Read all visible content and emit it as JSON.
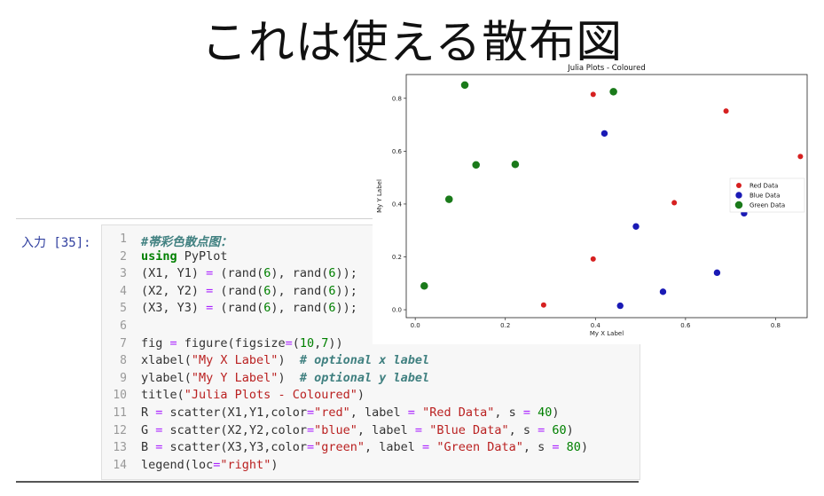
{
  "slide": {
    "title": "これは使える散布図"
  },
  "cell": {
    "prompt": "入力 [35]:",
    "lines": [
      {
        "n": "1",
        "parts": [
          [
            "cm",
            "#帯彩色散点图："
          ]
        ]
      },
      {
        "n": "2",
        "parts": [
          [
            "kw",
            "using"
          ],
          [
            "fn",
            " PyPlot"
          ]
        ]
      },
      {
        "n": "3",
        "parts": [
          [
            "fn",
            "(X1, Y1) "
          ],
          [
            "op",
            "="
          ],
          [
            "fn",
            " (rand("
          ],
          [
            "num",
            "6"
          ],
          [
            "fn",
            "), rand("
          ],
          [
            "num",
            "6"
          ],
          [
            "fn",
            "));"
          ]
        ]
      },
      {
        "n": "4",
        "parts": [
          [
            "fn",
            "(X2, Y2) "
          ],
          [
            "op",
            "="
          ],
          [
            "fn",
            " (rand("
          ],
          [
            "num",
            "6"
          ],
          [
            "fn",
            "), rand("
          ],
          [
            "num",
            "6"
          ],
          [
            "fn",
            "));"
          ]
        ]
      },
      {
        "n": "5",
        "parts": [
          [
            "fn",
            "(X3, Y3) "
          ],
          [
            "op",
            "="
          ],
          [
            "fn",
            " (rand("
          ],
          [
            "num",
            "6"
          ],
          [
            "fn",
            "), rand("
          ],
          [
            "num",
            "6"
          ],
          [
            "fn",
            "));"
          ]
        ]
      },
      {
        "n": "6",
        "parts": []
      },
      {
        "n": "7",
        "parts": [
          [
            "fn",
            "fig "
          ],
          [
            "op",
            "="
          ],
          [
            "fn",
            " figure(figsize"
          ],
          [
            "op",
            "="
          ],
          [
            "fn",
            "("
          ],
          [
            "num",
            "10"
          ],
          [
            "fn",
            ","
          ],
          [
            "num",
            "7"
          ],
          [
            "fn",
            "))"
          ]
        ]
      },
      {
        "n": "8",
        "parts": [
          [
            "fn",
            "xlabel("
          ],
          [
            "str",
            "\"My X Label\""
          ],
          [
            "fn",
            ")  "
          ],
          [
            "cm",
            "# optional x label"
          ]
        ]
      },
      {
        "n": "9",
        "parts": [
          [
            "fn",
            "ylabel("
          ],
          [
            "str",
            "\"My Y Label\""
          ],
          [
            "fn",
            ")  "
          ],
          [
            "cm",
            "# optional y label"
          ]
        ]
      },
      {
        "n": "10",
        "parts": [
          [
            "fn",
            "title("
          ],
          [
            "str",
            "\"Julia Plots - Coloured\""
          ],
          [
            "fn",
            ")"
          ]
        ]
      },
      {
        "n": "11",
        "parts": [
          [
            "fn",
            "R "
          ],
          [
            "op",
            "="
          ],
          [
            "fn",
            " scatter(X1,Y1,color"
          ],
          [
            "op",
            "="
          ],
          [
            "str",
            "\"red\""
          ],
          [
            "fn",
            ", label "
          ],
          [
            "op",
            "="
          ],
          [
            "fn",
            " "
          ],
          [
            "str",
            "\"Red Data\""
          ],
          [
            "fn",
            ", s "
          ],
          [
            "op",
            "="
          ],
          [
            "fn",
            " "
          ],
          [
            "num",
            "40"
          ],
          [
            "fn",
            ")"
          ]
        ]
      },
      {
        "n": "12",
        "parts": [
          [
            "fn",
            "G "
          ],
          [
            "op",
            "="
          ],
          [
            "fn",
            " scatter(X2,Y2,color"
          ],
          [
            "op",
            "="
          ],
          [
            "str",
            "\"blue\""
          ],
          [
            "fn",
            ", label "
          ],
          [
            "op",
            "="
          ],
          [
            "fn",
            " "
          ],
          [
            "str",
            "\"Blue Data\""
          ],
          [
            "fn",
            ", s "
          ],
          [
            "op",
            "="
          ],
          [
            "fn",
            " "
          ],
          [
            "num",
            "60"
          ],
          [
            "fn",
            ")"
          ]
        ]
      },
      {
        "n": "13",
        "parts": [
          [
            "fn",
            "B "
          ],
          [
            "op",
            "="
          ],
          [
            "fn",
            " scatter(X3,Y3,color"
          ],
          [
            "op",
            "="
          ],
          [
            "str",
            "\"green\""
          ],
          [
            "fn",
            ", label "
          ],
          [
            "op",
            "="
          ],
          [
            "fn",
            " "
          ],
          [
            "str",
            "\"Green Data\""
          ],
          [
            "fn",
            ", s "
          ],
          [
            "op",
            "="
          ],
          [
            "fn",
            " "
          ],
          [
            "num",
            "80"
          ],
          [
            "fn",
            ")"
          ]
        ]
      },
      {
        "n": "14",
        "parts": [
          [
            "fn",
            "legend(loc"
          ],
          [
            "op",
            "="
          ],
          [
            "str",
            "\"right\""
          ],
          [
            "fn",
            ")"
          ]
        ]
      }
    ]
  },
  "chart_data": {
    "type": "scatter",
    "title": "Julia Plots - Coloured",
    "xlabel": "My X Label",
    "ylabel": "My Y Label",
    "xlim": [
      -0.02,
      0.87
    ],
    "ylim": [
      -0.03,
      0.89
    ],
    "xticks": [
      "0.0",
      "0.2",
      "0.4",
      "0.6",
      "0.8"
    ],
    "xtick_values": [
      0.0,
      0.2,
      0.4,
      0.6,
      0.8
    ],
    "yticks": [
      "0.0",
      "0.2",
      "0.4",
      "0.6",
      "0.8"
    ],
    "ytick_values": [
      0.0,
      0.2,
      0.4,
      0.6,
      0.8
    ],
    "legend_position": "right",
    "series": [
      {
        "name": "Red Data",
        "color": "#d62020",
        "size": 40,
        "x": [
          0.395,
          0.69,
          0.855,
          0.575,
          0.395,
          0.285
        ],
        "y": [
          0.815,
          0.752,
          0.58,
          0.405,
          0.192,
          0.018
        ]
      },
      {
        "name": "Blue Data",
        "color": "#1a1ab5",
        "size": 60,
        "x": [
          0.42,
          0.49,
          0.73,
          0.67,
          0.55,
          0.455
        ],
        "y": [
          0.667,
          0.315,
          0.365,
          0.14,
          0.068,
          0.015
        ]
      },
      {
        "name": "Green Data",
        "color": "#1a7a1a",
        "size": 80,
        "x": [
          0.11,
          0.44,
          0.135,
          0.222,
          0.075,
          0.02
        ],
        "y": [
          0.85,
          0.825,
          0.548,
          0.55,
          0.418,
          0.09
        ]
      }
    ]
  }
}
